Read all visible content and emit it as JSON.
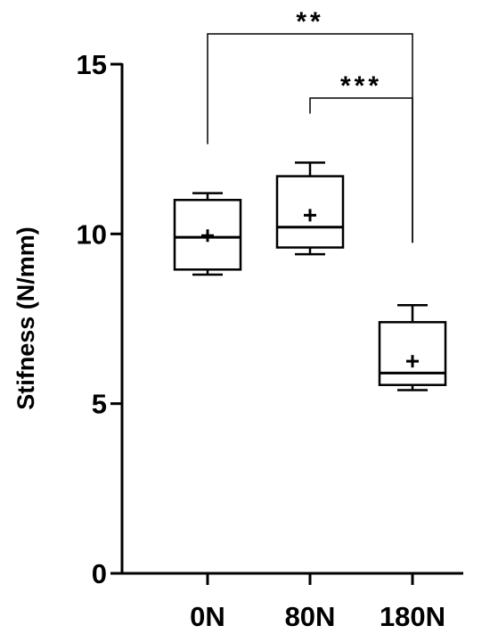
{
  "chart_data": {
    "type": "box",
    "y_label": "Stifness (N/mm)",
    "categories": [
      "0N",
      "80N",
      "180N"
    ],
    "min": [
      8.8,
      9.4,
      5.4
    ],
    "q1": [
      8.95,
      9.6,
      5.55
    ],
    "median": [
      9.9,
      10.2,
      5.9
    ],
    "q3": [
      11.0,
      11.7,
      7.4
    ],
    "max": [
      11.2,
      12.1,
      7.9
    ],
    "mean": [
      9.95,
      10.55,
      6.25
    ],
    "color": "#000000",
    "ylim": [
      0,
      15
    ],
    "yticks": [
      0,
      5,
      10,
      15
    ],
    "annotations": [
      {
        "text": "**",
        "from": "0N",
        "to": "180N"
      },
      {
        "text": "***",
        "from": "80N",
        "to": "180N"
      }
    ]
  }
}
